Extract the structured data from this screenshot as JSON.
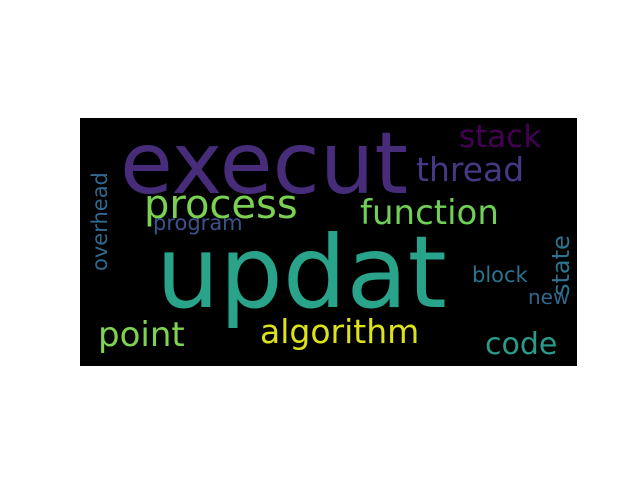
{
  "word_cloud": {
    "words": [
      {
        "text": "updat",
        "color": "#29a38a"
      },
      {
        "text": "execut",
        "color": "#472c7a"
      },
      {
        "text": "process",
        "color": "#7ad151"
      },
      {
        "text": "function",
        "color": "#6fcf56"
      },
      {
        "text": "thread",
        "color": "#443983"
      },
      {
        "text": "stack",
        "color": "#440154"
      },
      {
        "text": "algorithm",
        "color": "#dde318"
      },
      {
        "text": "point",
        "color": "#7fd34e"
      },
      {
        "text": "code",
        "color": "#2a9a8a"
      },
      {
        "text": "program",
        "color": "#3b528b"
      },
      {
        "text": "block",
        "color": "#2c728e"
      },
      {
        "text": "new",
        "color": "#31668e"
      },
      {
        "text": "overhead",
        "color": "#31688e"
      },
      {
        "text": "state",
        "color": "#2c738e"
      }
    ]
  }
}
